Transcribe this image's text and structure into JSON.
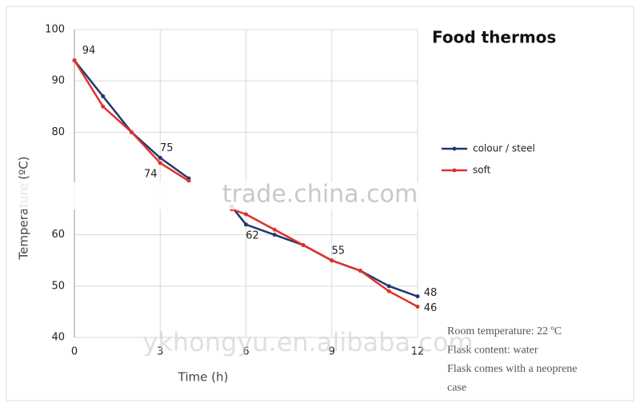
{
  "chart_data": {
    "type": "line",
    "title": "Food thermos",
    "x_label": "Time (h)",
    "y_label": "Temperature (ºC)",
    "x": [
      0,
      1,
      2,
      3,
      4,
      5,
      5.5,
      6,
      7,
      8,
      9,
      10,
      11,
      12
    ],
    "series": [
      {
        "name": "colour / steel",
        "color": "#1f3a6e",
        "values": [
          94,
          87,
          80,
          75,
          71,
          null,
          65.5,
          62,
          60,
          58,
          55,
          53,
          50,
          48
        ],
        "value_labels": [
          "94",
          null,
          null,
          "75",
          null,
          null,
          null,
          "62",
          null,
          null,
          "55",
          null,
          null,
          "48"
        ]
      },
      {
        "name": "soft",
        "color": "#e0312a",
        "values": [
          94,
          85,
          80,
          74,
          70.5,
          null,
          65,
          64,
          61,
          58,
          55,
          53,
          49,
          46
        ],
        "value_labels": [
          null,
          null,
          null,
          "74",
          null,
          null,
          null,
          null,
          null,
          null,
          null,
          null,
          null,
          "46"
        ]
      }
    ],
    "xlim": [
      0,
      12
    ],
    "xticks": [
      0,
      3,
      6,
      9,
      12
    ],
    "ylim": [
      40,
      100
    ],
    "yticks": [
      40,
      50,
      60,
      80,
      90,
      100
    ],
    "grid": true,
    "legend": "right",
    "annotations": [
      "Room temperature: 22 ºC",
      "Flask content: water",
      "Flask comes with a neoprene",
      "case"
    ],
    "watermarks": [
      "trade.china.com",
      "ykhongyu.en.alibaba.com"
    ]
  }
}
